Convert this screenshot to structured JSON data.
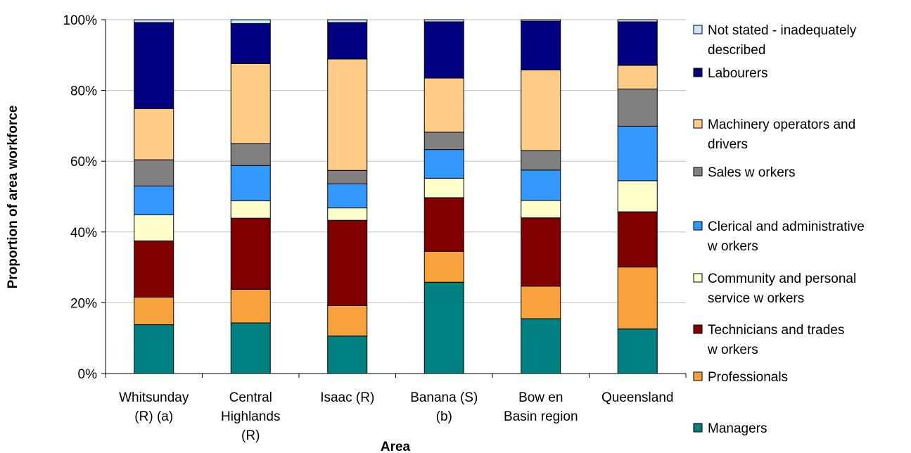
{
  "chart_data": {
    "type": "bar",
    "stacked": true,
    "percent": true,
    "title": "",
    "xlabel": "Area",
    "ylabel": "Proportion of area workforce",
    "ylim": [
      0,
      100
    ],
    "yticks": [
      "0%",
      "20%",
      "40%",
      "60%",
      "80%",
      "100%"
    ],
    "grid": true,
    "legend_position": "right",
    "categories": [
      [
        "Whitsunday",
        "(R) (a)"
      ],
      [
        "Central",
        "Highlands",
        "(R)"
      ],
      [
        "Isaac (R)"
      ],
      [
        "Banana (S)",
        "(b)"
      ],
      [
        "Bow en",
        "Basin region"
      ],
      [
        "Queensland"
      ]
    ],
    "series": [
      {
        "name": [
          "Managers"
        ],
        "color": "#008080",
        "values": [
          13.8,
          14.3,
          10.6,
          25.8,
          15.5,
          12.6
        ]
      },
      {
        "name": [
          "Professionals"
        ],
        "color": "#F7A23C",
        "values": [
          7.8,
          9.5,
          8.6,
          8.7,
          9.2,
          17.5
        ]
      },
      {
        "name": [
          "Technicians and trades",
          "w orkers"
        ],
        "color": "#800000",
        "values": [
          15.9,
          20.1,
          24.1,
          15.2,
          19.3,
          15.6
        ]
      },
      {
        "name": [
          "Community and personal",
          "service w orkers"
        ],
        "color": "#FFFFCC",
        "values": [
          7.4,
          4.9,
          3.5,
          5.5,
          4.9,
          8.8
        ]
      },
      {
        "name": [
          "Clerical and administrative",
          "w orkers"
        ],
        "color": "#3399FF",
        "values": [
          8.1,
          10.0,
          6.8,
          8.1,
          8.6,
          15.4
        ]
      },
      {
        "name": [
          "Sales w orkers"
        ],
        "color": "#808080",
        "values": [
          7.4,
          6.2,
          3.8,
          4.9,
          5.5,
          10.5
        ]
      },
      {
        "name": [
          "Machinery operators and",
          "drivers"
        ],
        "color": "#FFCC88",
        "values": [
          14.5,
          22.6,
          31.5,
          15.3,
          22.8,
          6.7
        ]
      },
      {
        "name": [
          "Labourers"
        ],
        "color": "#000080",
        "values": [
          24.3,
          11.3,
          10.3,
          15.9,
          13.8,
          12.3
        ]
      },
      {
        "name": [
          "Not stated - inadequately",
          "described"
        ],
        "color": "#CCE5FF",
        "values": [
          0.8,
          1.1,
          0.8,
          0.6,
          0.4,
          0.6
        ]
      }
    ]
  }
}
